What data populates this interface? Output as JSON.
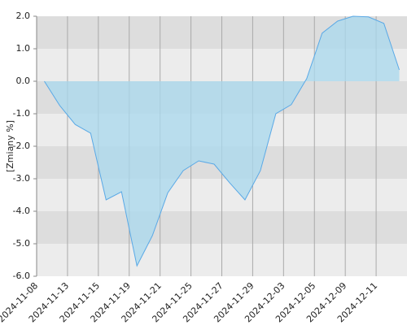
{
  "chart_data": {
    "type": "area",
    "y_label": "[Zmiany %]",
    "categories": [
      "2024-11-08",
      null,
      "2024-11-13",
      null,
      "2024-11-15",
      null,
      "2024-11-19",
      null,
      "2024-11-21",
      null,
      "2024-11-25",
      null,
      "2024-11-27",
      null,
      "2024-11-29",
      null,
      "2024-12-03",
      null,
      "2024-12-05",
      null,
      "2024-12-09",
      null,
      "2024-12-11",
      null
    ],
    "values": [
      0.0,
      -0.75,
      -1.33,
      -1.6,
      -3.65,
      -3.4,
      -5.68,
      -4.75,
      -3.43,
      -2.75,
      -2.45,
      -2.55,
      -3.12,
      -3.65,
      -2.75,
      -1.0,
      -0.72,
      0.08,
      1.48,
      1.85,
      2.0,
      1.98,
      1.78,
      0.35
    ],
    "color": "#5aa9e6",
    "fill": "#a8d8ee",
    "ylim": [
      -6,
      2
    ],
    "yticks": [
      {
        "value": -6,
        "label": "-6.0"
      },
      {
        "value": -5,
        "label": "-5.0"
      },
      {
        "value": -4,
        "label": "-4.0"
      },
      {
        "value": -3,
        "label": "-3.0"
      },
      {
        "value": -2,
        "label": "-2.0"
      },
      {
        "value": -1,
        "label": "-1.0"
      },
      {
        "value": 0,
        "label": "0.0"
      },
      {
        "value": 1,
        "label": "1.0"
      },
      {
        "value": 2,
        "label": "2.0"
      }
    ],
    "grid": true
  }
}
